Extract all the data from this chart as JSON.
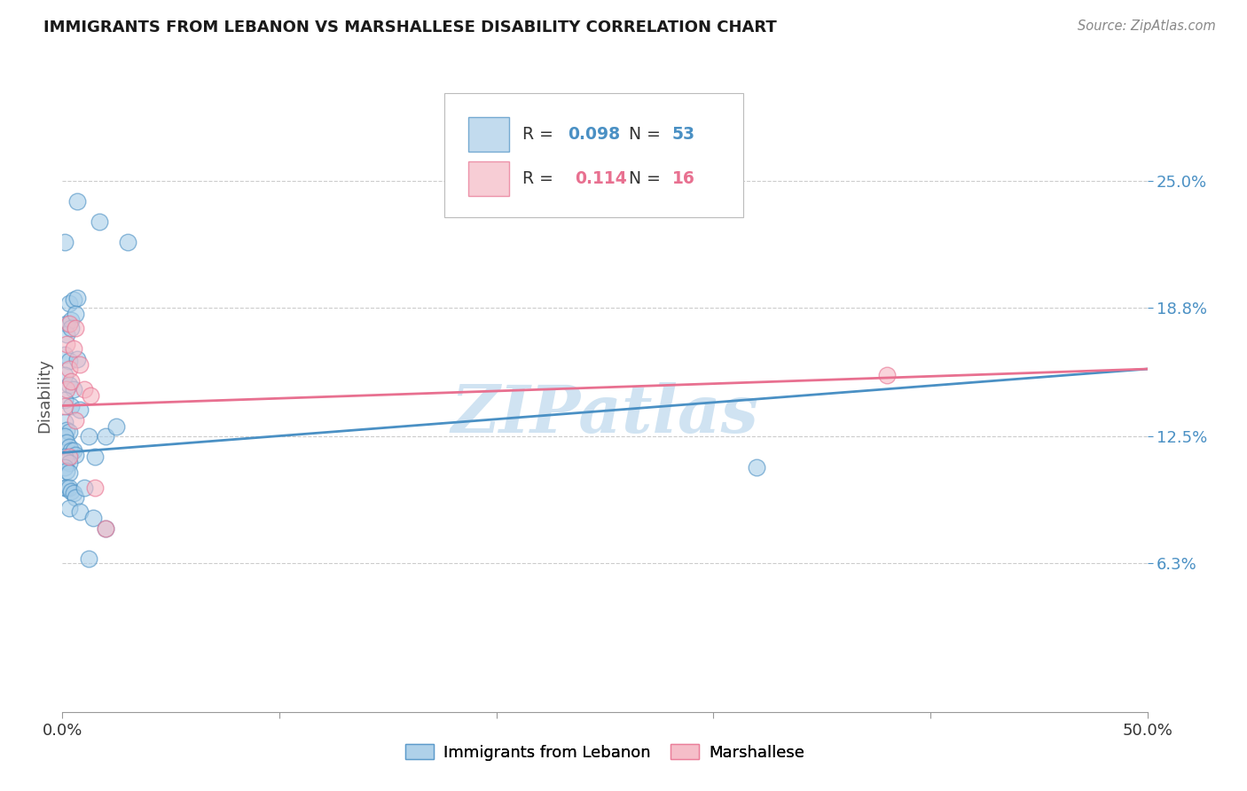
{
  "title": "IMMIGRANTS FROM LEBANON VS MARSHALLESE DISABILITY CORRELATION CHART",
  "source": "Source: ZipAtlas.com",
  "ylabel": "Disability",
  "ytick_labels": [
    "6.3%",
    "12.5%",
    "18.8%",
    "25.0%"
  ],
  "ytick_values": [
    0.063,
    0.125,
    0.188,
    0.25
  ],
  "xmin": 0.0,
  "xmax": 0.5,
  "ymin": -0.01,
  "ymax": 0.3,
  "blue_color": "#a8cde8",
  "pink_color": "#f5b8c4",
  "blue_line_color": "#4a90c4",
  "pink_line_color": "#e87090",
  "blue_scatter": [
    [
      0.001,
      0.22
    ],
    [
      0.007,
      0.24
    ],
    [
      0.017,
      0.23
    ],
    [
      0.03,
      0.22
    ],
    [
      0.003,
      0.19
    ],
    [
      0.005,
      0.192
    ],
    [
      0.007,
      0.193
    ],
    [
      0.002,
      0.18
    ],
    [
      0.004,
      0.182
    ],
    [
      0.006,
      0.185
    ],
    [
      0.002,
      0.175
    ],
    [
      0.004,
      0.178
    ],
    [
      0.001,
      0.165
    ],
    [
      0.003,
      0.162
    ],
    [
      0.007,
      0.163
    ],
    [
      0.001,
      0.155
    ],
    [
      0.003,
      0.15
    ],
    [
      0.005,
      0.148
    ],
    [
      0.001,
      0.143
    ],
    [
      0.004,
      0.14
    ],
    [
      0.008,
      0.138
    ],
    [
      0.001,
      0.132
    ],
    [
      0.002,
      0.128
    ],
    [
      0.003,
      0.127
    ],
    [
      0.001,
      0.125
    ],
    [
      0.002,
      0.122
    ],
    [
      0.003,
      0.12
    ],
    [
      0.004,
      0.118
    ],
    [
      0.005,
      0.118
    ],
    [
      0.006,
      0.116
    ],
    [
      0.001,
      0.115
    ],
    [
      0.002,
      0.113
    ],
    [
      0.003,
      0.112
    ],
    [
      0.001,
      0.11
    ],
    [
      0.002,
      0.108
    ],
    [
      0.003,
      0.107
    ],
    [
      0.001,
      0.1
    ],
    [
      0.002,
      0.1
    ],
    [
      0.003,
      0.1
    ],
    [
      0.004,
      0.098
    ],
    [
      0.005,
      0.097
    ],
    [
      0.006,
      0.095
    ],
    [
      0.012,
      0.125
    ],
    [
      0.02,
      0.125
    ],
    [
      0.015,
      0.115
    ],
    [
      0.025,
      0.13
    ],
    [
      0.01,
      0.1
    ],
    [
      0.02,
      0.08
    ],
    [
      0.012,
      0.065
    ],
    [
      0.32,
      0.11
    ],
    [
      0.003,
      0.09
    ],
    [
      0.008,
      0.088
    ],
    [
      0.014,
      0.085
    ]
  ],
  "pink_scatter": [
    [
      0.003,
      0.18
    ],
    [
      0.006,
      0.178
    ],
    [
      0.002,
      0.17
    ],
    [
      0.005,
      0.168
    ],
    [
      0.003,
      0.158
    ],
    [
      0.008,
      0.16
    ],
    [
      0.002,
      0.148
    ],
    [
      0.004,
      0.152
    ],
    [
      0.001,
      0.14
    ],
    [
      0.006,
      0.133
    ],
    [
      0.01,
      0.148
    ],
    [
      0.013,
      0.145
    ],
    [
      0.015,
      0.1
    ],
    [
      0.02,
      0.08
    ],
    [
      0.003,
      0.115
    ],
    [
      0.38,
      0.155
    ]
  ],
  "blue_line_x0": 0.0,
  "blue_line_y0": 0.117,
  "blue_line_x1": 0.5,
  "blue_line_y1": 0.158,
  "pink_line_x0": 0.0,
  "pink_line_y0": 0.14,
  "pink_line_x1": 0.5,
  "pink_line_y1": 0.158,
  "watermark": "ZIPatlas",
  "watermark_color": "#c8dff0",
  "background_color": "#ffffff",
  "grid_color": "#cccccc"
}
